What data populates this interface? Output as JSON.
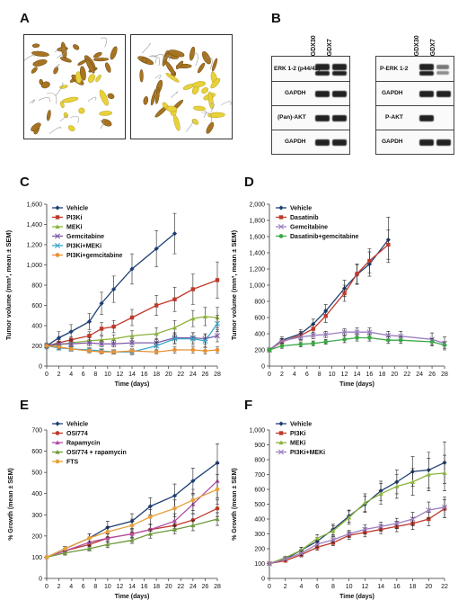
{
  "panels": {
    "A": {
      "label": "A"
    },
    "B": {
      "label": "B",
      "columns": [
        "PGDX30",
        "PGDX7"
      ],
      "left_rows": [
        "ERK 1-2 (p44/42)",
        "GAPDH",
        "(Pan)-AKT",
        "GAPDH"
      ],
      "right_rows": [
        "P-ERK 1-2",
        "GAPDH",
        "P-AKT",
        "GAPDH"
      ]
    },
    "C": {
      "label": "C"
    },
    "D": {
      "label": "D"
    },
    "E": {
      "label": "E"
    },
    "F": {
      "label": "F"
    }
  },
  "chart_data": [
    {
      "id": "C",
      "type": "line",
      "xlabel": "Time (days)",
      "ylabel": "Tumor volume (mm³, mean ± SEM)",
      "xlim": [
        0,
        28
      ],
      "ylim": [
        0,
        1600
      ],
      "xticks": [
        0,
        2,
        4,
        6,
        8,
        10,
        12,
        14,
        16,
        18,
        20,
        22,
        24,
        26,
        28
      ],
      "yticks": [
        0,
        200,
        400,
        600,
        800,
        1000,
        1200,
        1400,
        1600
      ],
      "ytick_labels": [
        "0",
        "200",
        "400",
        "600",
        "800",
        "1,000",
        "1,200",
        "1,400",
        "1,600"
      ],
      "legend": "top-left",
      "series": [
        {
          "name": "Vehicle",
          "color": "#1f3f73",
          "marker": "diamond",
          "x": [
            0,
            2,
            4,
            7,
            9,
            11,
            14,
            18,
            21
          ],
          "y": [
            200,
            280,
            340,
            440,
            620,
            760,
            960,
            1160,
            1310
          ],
          "err": [
            30,
            60,
            70,
            80,
            110,
            130,
            150,
            180,
            200
          ]
        },
        {
          "name": "PI3Ki",
          "color": "#c0392b",
          "marker": "square",
          "x": [
            0,
            2,
            4,
            7,
            9,
            11,
            14,
            18,
            21,
            24,
            28
          ],
          "y": [
            200,
            230,
            260,
            300,
            370,
            390,
            480,
            600,
            660,
            760,
            850
          ],
          "err": [
            20,
            30,
            30,
            40,
            60,
            60,
            80,
            100,
            120,
            150,
            180
          ]
        },
        {
          "name": "MEKi",
          "color": "#8cb33e",
          "marker": "triangle",
          "x": [
            0,
            2,
            4,
            7,
            9,
            11,
            14,
            18,
            21,
            24,
            26,
            28
          ],
          "y": [
            200,
            210,
            230,
            250,
            260,
            270,
            300,
            320,
            380,
            470,
            490,
            480
          ],
          "err": [
            20,
            20,
            30,
            30,
            40,
            40,
            50,
            60,
            70,
            80,
            90,
            100
          ]
        },
        {
          "name": "Gemcitabine",
          "color": "#7d5ba6",
          "marker": "x",
          "x": [
            0,
            2,
            4,
            7,
            9,
            11,
            14,
            18,
            21,
            24,
            26,
            28
          ],
          "y": [
            200,
            220,
            220,
            230,
            220,
            220,
            230,
            230,
            280,
            280,
            270,
            300
          ],
          "err": [
            20,
            20,
            30,
            30,
            30,
            30,
            40,
            40,
            50,
            50,
            50,
            60
          ]
        },
        {
          "name": "PI3Ki+MEKi",
          "color": "#3aa6c9",
          "marker": "x",
          "x": [
            0,
            2,
            4,
            7,
            9,
            11,
            14,
            18,
            21,
            24,
            26,
            28
          ],
          "y": [
            200,
            180,
            170,
            160,
            150,
            140,
            140,
            200,
            270,
            270,
            250,
            420
          ],
          "err": [
            20,
            20,
            20,
            20,
            20,
            20,
            30,
            40,
            50,
            60,
            60,
            80
          ]
        },
        {
          "name": "PI3Ki+gemcitabine",
          "color": "#e69138",
          "marker": "circle",
          "x": [
            0,
            2,
            4,
            7,
            9,
            11,
            14,
            18,
            21,
            24,
            26,
            28
          ],
          "y": [
            200,
            190,
            170,
            150,
            140,
            140,
            150,
            140,
            160,
            160,
            150,
            160
          ],
          "err": [
            20,
            20,
            20,
            20,
            20,
            20,
            20,
            20,
            30,
            30,
            30,
            30
          ]
        }
      ]
    },
    {
      "id": "D",
      "type": "line",
      "xlabel": "Time (days)",
      "ylabel": "Tumor volume (mm³, mean ± SEM)",
      "xlim": [
        0,
        28
      ],
      "ylim": [
        0,
        2000
      ],
      "xticks": [
        0,
        2,
        4,
        6,
        8,
        10,
        12,
        14,
        16,
        18,
        20,
        22,
        24,
        26,
        28
      ],
      "yticks": [
        0,
        200,
        400,
        600,
        800,
        1000,
        1200,
        1400,
        1600,
        1800,
        2000
      ],
      "ytick_labels": [
        "0",
        "200",
        "400",
        "600",
        "800",
        "1,000",
        "1,200",
        "1,400",
        "1,600",
        "1,800",
        "2,000"
      ],
      "legend": "top-left",
      "series": [
        {
          "name": "Vehicle",
          "color": "#1f3f73",
          "marker": "diamond",
          "x": [
            0,
            2,
            5,
            7,
            9,
            12,
            14,
            16,
            19
          ],
          "y": [
            200,
            320,
            400,
            520,
            680,
            960,
            1130,
            1260,
            1560
          ],
          "err": [
            20,
            40,
            50,
            60,
            80,
            100,
            120,
            150,
            280
          ]
        },
        {
          "name": "Dasatinib",
          "color": "#c0392b",
          "marker": "square",
          "x": [
            0,
            2,
            5,
            7,
            9,
            12,
            14,
            16,
            19
          ],
          "y": [
            200,
            300,
            380,
            460,
            620,
            900,
            1140,
            1300,
            1500
          ],
          "err": [
            20,
            40,
            50,
            60,
            80,
            100,
            120,
            150,
            180
          ]
        },
        {
          "name": "Gemcitabine",
          "color": "#9b7fc0",
          "marker": "x",
          "x": [
            0,
            2,
            5,
            7,
            9,
            12,
            14,
            16,
            19,
            21,
            26,
            28
          ],
          "y": [
            200,
            310,
            360,
            380,
            390,
            420,
            420,
            420,
            380,
            370,
            330,
            280
          ],
          "err": [
            20,
            30,
            40,
            40,
            40,
            40,
            50,
            50,
            50,
            60,
            80,
            80
          ]
        },
        {
          "name": "Dasatinib+gemcitabine",
          "color": "#3aa845",
          "marker": "circle",
          "x": [
            0,
            2,
            5,
            7,
            9,
            12,
            14,
            16,
            19,
            21,
            26,
            28
          ],
          "y": [
            200,
            250,
            270,
            280,
            300,
            330,
            350,
            350,
            320,
            320,
            300,
            260
          ],
          "err": [
            20,
            30,
            30,
            30,
            30,
            40,
            40,
            40,
            40,
            40,
            40,
            40
          ]
        }
      ]
    },
    {
      "id": "E",
      "type": "line",
      "xlabel": "Time (days)",
      "ylabel": "% Growth (mean ± SEM)",
      "xlim": [
        0,
        28
      ],
      "ylim": [
        0,
        700
      ],
      "xticks": [
        0,
        2,
        4,
        6,
        8,
        10,
        12,
        14,
        16,
        18,
        20,
        22,
        24,
        26,
        28
      ],
      "yticks": [
        0,
        100,
        200,
        300,
        400,
        500,
        600,
        700
      ],
      "ytick_labels": [
        "0",
        "100",
        "200",
        "300",
        "400",
        "500",
        "600",
        "700"
      ],
      "legend": "top-left",
      "series": [
        {
          "name": "Vehicle",
          "color": "#1f3f73",
          "marker": "diamond",
          "x": [
            0,
            3,
            7,
            10,
            14,
            17,
            21,
            24,
            28
          ],
          "y": [
            100,
            140,
            190,
            240,
            270,
            340,
            390,
            460,
            545
          ],
          "err": [
            5,
            10,
            20,
            30,
            35,
            40,
            55,
            60,
            90
          ]
        },
        {
          "name": "OSI774",
          "color": "#c0392b",
          "marker": "circle",
          "x": [
            0,
            3,
            7,
            10,
            14,
            17,
            21,
            24,
            28
          ],
          "y": [
            100,
            130,
            160,
            190,
            210,
            230,
            250,
            275,
            330
          ],
          "err": [
            5,
            10,
            15,
            20,
            20,
            25,
            25,
            30,
            40
          ]
        },
        {
          "name": "Rapamycin",
          "color": "#b24fa8",
          "marker": "triangle",
          "x": [
            0,
            3,
            7,
            10,
            14,
            17,
            21,
            24,
            28
          ],
          "y": [
            100,
            130,
            170,
            190,
            210,
            230,
            270,
            350,
            460
          ],
          "err": [
            5,
            10,
            15,
            20,
            20,
            25,
            35,
            45,
            80
          ]
        },
        {
          "name": "OSI774 + rapamycin",
          "color": "#6e9a3c",
          "marker": "triangle",
          "x": [
            0,
            3,
            7,
            10,
            14,
            17,
            21,
            24,
            28
          ],
          "y": [
            100,
            120,
            140,
            160,
            180,
            210,
            230,
            250,
            280
          ],
          "err": [
            5,
            10,
            10,
            15,
            15,
            20,
            20,
            25,
            30
          ]
        },
        {
          "name": "FTS",
          "color": "#e6a23a",
          "marker": "circle",
          "x": [
            0,
            3,
            7,
            10,
            14,
            17,
            21,
            24,
            28
          ],
          "y": [
            100,
            140,
            190,
            220,
            250,
            290,
            330,
            370,
            420
          ],
          "err": [
            5,
            10,
            20,
            25,
            30,
            35,
            40,
            50,
            70
          ]
        }
      ]
    },
    {
      "id": "F",
      "type": "line",
      "xlabel": "Time (days)",
      "ylabel": "% Growth (mean ± SEM)",
      "xlim": [
        0,
        22
      ],
      "ylim": [
        0,
        1000
      ],
      "xticks": [
        0,
        2,
        4,
        6,
        8,
        10,
        12,
        14,
        16,
        18,
        20,
        22
      ],
      "yticks": [
        0,
        100,
        200,
        300,
        400,
        500,
        600,
        700,
        800,
        900,
        1000
      ],
      "ytick_labels": [
        "0",
        "100",
        "200",
        "300",
        "400",
        "500",
        "600",
        "700",
        "800",
        "900",
        "1,000"
      ],
      "legend": "top-left",
      "series": [
        {
          "name": "Vehicle",
          "color": "#1f3f73",
          "marker": "diamond",
          "x": [
            0,
            2,
            4,
            6,
            8,
            10,
            12,
            14,
            16,
            18,
            20,
            22
          ],
          "y": [
            100,
            130,
            190,
            250,
            330,
            420,
            500,
            590,
            650,
            720,
            730,
            780
          ],
          "err": [
            5,
            10,
            20,
            25,
            35,
            40,
            55,
            65,
            80,
            100,
            120,
            140
          ]
        },
        {
          "name": "PI3Ki",
          "color": "#c0392b",
          "marker": "square",
          "x": [
            0,
            2,
            4,
            6,
            8,
            10,
            12,
            14,
            16,
            18,
            20,
            22
          ],
          "y": [
            100,
            120,
            160,
            210,
            240,
            290,
            310,
            330,
            350,
            370,
            400,
            470
          ],
          "err": [
            5,
            10,
            15,
            20,
            20,
            25,
            30,
            30,
            35,
            40,
            45,
            60
          ]
        },
        {
          "name": "MEKi",
          "color": "#8cb33e",
          "marker": "triangle",
          "x": [
            0,
            2,
            4,
            6,
            8,
            10,
            12,
            14,
            16,
            18,
            20,
            22
          ],
          "y": [
            100,
            140,
            190,
            270,
            320,
            410,
            510,
            570,
            620,
            650,
            700,
            710
          ],
          "err": [
            5,
            10,
            20,
            25,
            35,
            45,
            60,
            70,
            80,
            90,
            110,
            120
          ]
        },
        {
          "name": "PI3Ki+MEKi",
          "color": "#9b7fc0",
          "marker": "x",
          "x": [
            0,
            2,
            4,
            6,
            8,
            10,
            12,
            14,
            16,
            18,
            20,
            22
          ],
          "y": [
            100,
            130,
            170,
            230,
            260,
            300,
            330,
            350,
            370,
            400,
            460,
            480
          ],
          "err": [
            5,
            10,
            15,
            20,
            20,
            25,
            30,
            30,
            35,
            45,
            55,
            70
          ]
        }
      ]
    }
  ]
}
